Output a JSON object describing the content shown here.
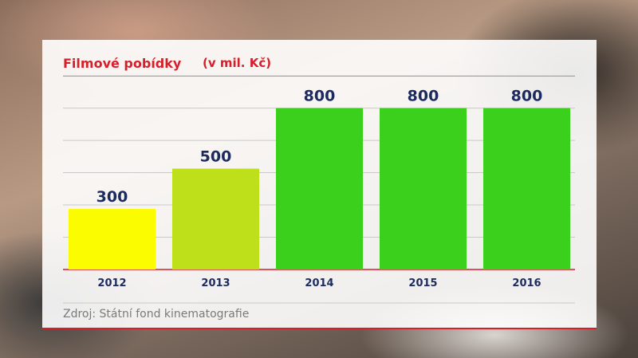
{
  "chart_data": {
    "type": "bar",
    "title": "Filmové pobídky",
    "subtitle": "(v mil. Kč)",
    "categories": [
      "2012",
      "2013",
      "2014",
      "2015",
      "2016"
    ],
    "values": [
      300,
      500,
      800,
      800,
      800
    ],
    "data_labels": [
      "300",
      "500",
      "800",
      "800",
      "800"
    ],
    "bar_colors": [
      "#fcfc00",
      "#bde01a",
      "#3ad01c",
      "#3ad01c",
      "#3ad01c"
    ],
    "ylim": [
      0,
      1000
    ],
    "grid": true,
    "xlabel": "",
    "ylabel": ""
  },
  "source": "Zdroj: Státní fond kinematografie"
}
